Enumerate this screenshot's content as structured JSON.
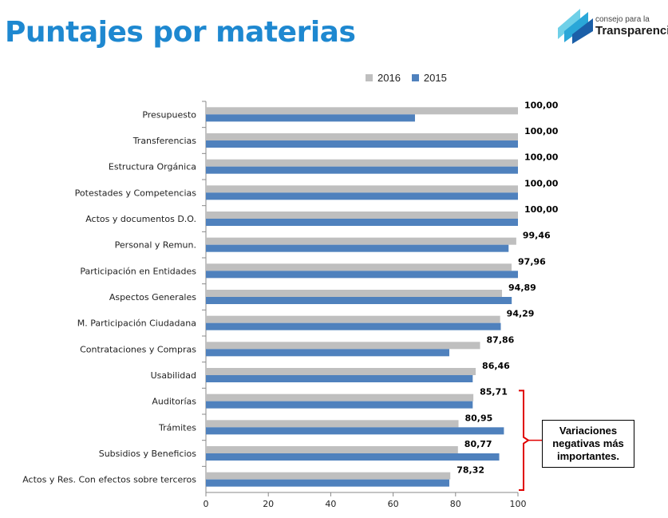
{
  "header": {
    "title": "Puntajes por materias",
    "logo_line1": "consejo para la",
    "logo_line2": "Transparencia"
  },
  "legend": {
    "items": [
      {
        "label": "2016",
        "color": "#bfbfbf"
      },
      {
        "label": "2015",
        "color": "#4f81bd"
      }
    ]
  },
  "note": {
    "text": "Variaciones negativas más importantes.",
    "bracket_color": "#e00000"
  },
  "chart_data": {
    "type": "bar",
    "orientation": "horizontal",
    "categories": [
      "Presupuesto",
      "Transferencias",
      "Estructura Orgánica",
      "Potestades y Competencias",
      "Actos y documentos D.O.",
      "Personal y Remun.",
      "Participación en Entidades",
      "Aspectos Generales",
      "M. Participación Ciudadana",
      "Contrataciones y Compras",
      "Usabilidad",
      "Auditorías",
      "Trámites",
      "Subsidios y Beneficios",
      "Actos y Res. Con efectos sobre terceros"
    ],
    "series": [
      {
        "name": "2016",
        "color": "#bfbfbf",
        "values": [
          100,
          100,
          100,
          100,
          100,
          99.46,
          97.96,
          94.89,
          94.29,
          87.86,
          86.46,
          85.71,
          80.95,
          80.77,
          78.32
        ]
      },
      {
        "name": "2015",
        "color": "#4f81bd",
        "values": [
          67,
          100,
          100,
          100,
          100,
          97,
          100,
          98,
          94.5,
          78,
          85.5,
          85.5,
          95.5,
          94,
          78
        ]
      }
    ],
    "data_labels": [
      "100,00",
      "100,00",
      "100,00",
      "100,00",
      "100,00",
      "99,46",
      "97,96",
      "94,89",
      "94,29",
      "87,86",
      "86,46",
      "85,71",
      "80,95",
      "80,77",
      "78,32"
    ],
    "xlim": [
      0,
      100
    ],
    "xticks": [
      "0",
      "20",
      "40",
      "60",
      "80",
      "100"
    ],
    "grid": false,
    "legend_position": "top"
  }
}
